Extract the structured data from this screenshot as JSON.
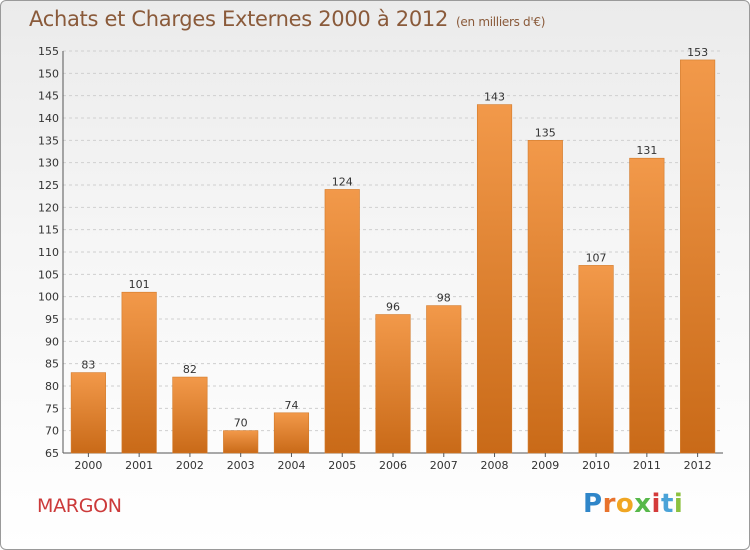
{
  "chart_data": {
    "type": "bar",
    "title": "Achats et Charges Externes 2000 à 2012",
    "subtitle": "(en milliers d'€)",
    "categories": [
      "2000",
      "2001",
      "2002",
      "2003",
      "2004",
      "2005",
      "2006",
      "2007",
      "2008",
      "2009",
      "2010",
      "2011",
      "2012"
    ],
    "values": [
      83,
      101,
      82,
      70,
      74,
      124,
      96,
      98,
      143,
      135,
      107,
      131,
      153
    ],
    "ylim": [
      65,
      155
    ],
    "ytick_step": 5,
    "grid": true,
    "bar_color": "#f2994a",
    "bar_color_dark": "#c96a18"
  },
  "footer": {
    "commune": "MARGON",
    "brand_letters": [
      "P",
      "r",
      "o",
      "x",
      "i",
      "t",
      "i"
    ]
  },
  "colors": {
    "title": "#8a5a3a",
    "commune": "#cc3a3a"
  }
}
